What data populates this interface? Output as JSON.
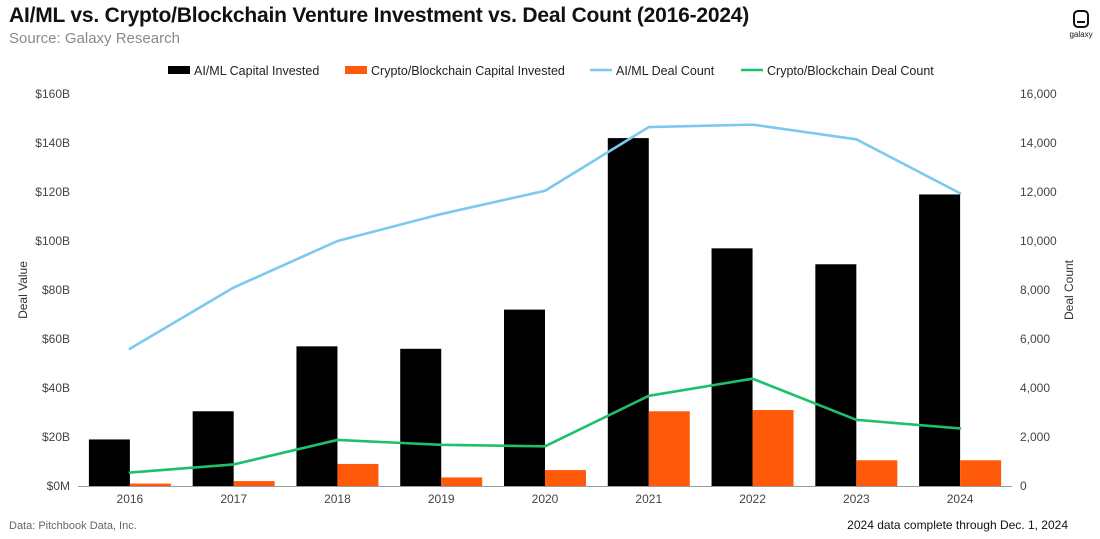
{
  "header": {
    "title": "AI/ML vs. Crypto/Blockchain Venture Investment vs. Deal Count (2016-2024)",
    "subtitle": "Source: Galaxy Research"
  },
  "logo": {
    "text": "galaxy"
  },
  "footer": {
    "left": "Data: Pitchbook Data, Inc.",
    "right": "2024 data complete through Dec. 1, 2024"
  },
  "colors": {
    "ai_bar": "#000000",
    "crypto_bar": "#ff5a0a",
    "ai_line": "#7cc8ee",
    "crypto_line": "#1fc06a",
    "axis": "#9a9a9a"
  },
  "chart_data": {
    "type": "bar",
    "categories": [
      "2016",
      "2017",
      "2018",
      "2019",
      "2020",
      "2021",
      "2022",
      "2023",
      "2024"
    ],
    "series": [
      {
        "name": "AI/ML Capital Invested",
        "kind": "bar",
        "axis": "left",
        "values": [
          19,
          30.5,
          57,
          56,
          72,
          142,
          97,
          90.5,
          119
        ]
      },
      {
        "name": "Crypto/Blockchain Capital Invested",
        "kind": "bar",
        "axis": "left",
        "values": [
          1,
          2,
          9,
          3.5,
          6.5,
          30.5,
          31,
          10.5,
          10.5
        ]
      },
      {
        "name": "AI/ML Deal Count",
        "kind": "line",
        "axis": "right",
        "values": [
          5600,
          8100,
          10000,
          11100,
          12050,
          14650,
          14750,
          14150,
          11950
        ]
      },
      {
        "name": "Crypto/Blockchain Deal Count",
        "kind": "line",
        "axis": "right",
        "values": [
          550,
          880,
          1880,
          1680,
          1620,
          3680,
          4380,
          2700,
          2350
        ]
      }
    ],
    "ylabel": "Deal Value",
    "y2label": "Deal Count",
    "ylim": [
      0,
      160
    ],
    "y2lim": [
      0,
      16000
    ],
    "yticks": [
      "$0M",
      "$20B",
      "$40B",
      "$60B",
      "$80B",
      "$100B",
      "$120B",
      "$140B",
      "$160B"
    ],
    "y2ticks": [
      "0",
      "2,000",
      "4,000",
      "6,000",
      "8,000",
      "10,000",
      "12,000",
      "14,000",
      "16,000"
    ],
    "legend_position": "top-center"
  }
}
